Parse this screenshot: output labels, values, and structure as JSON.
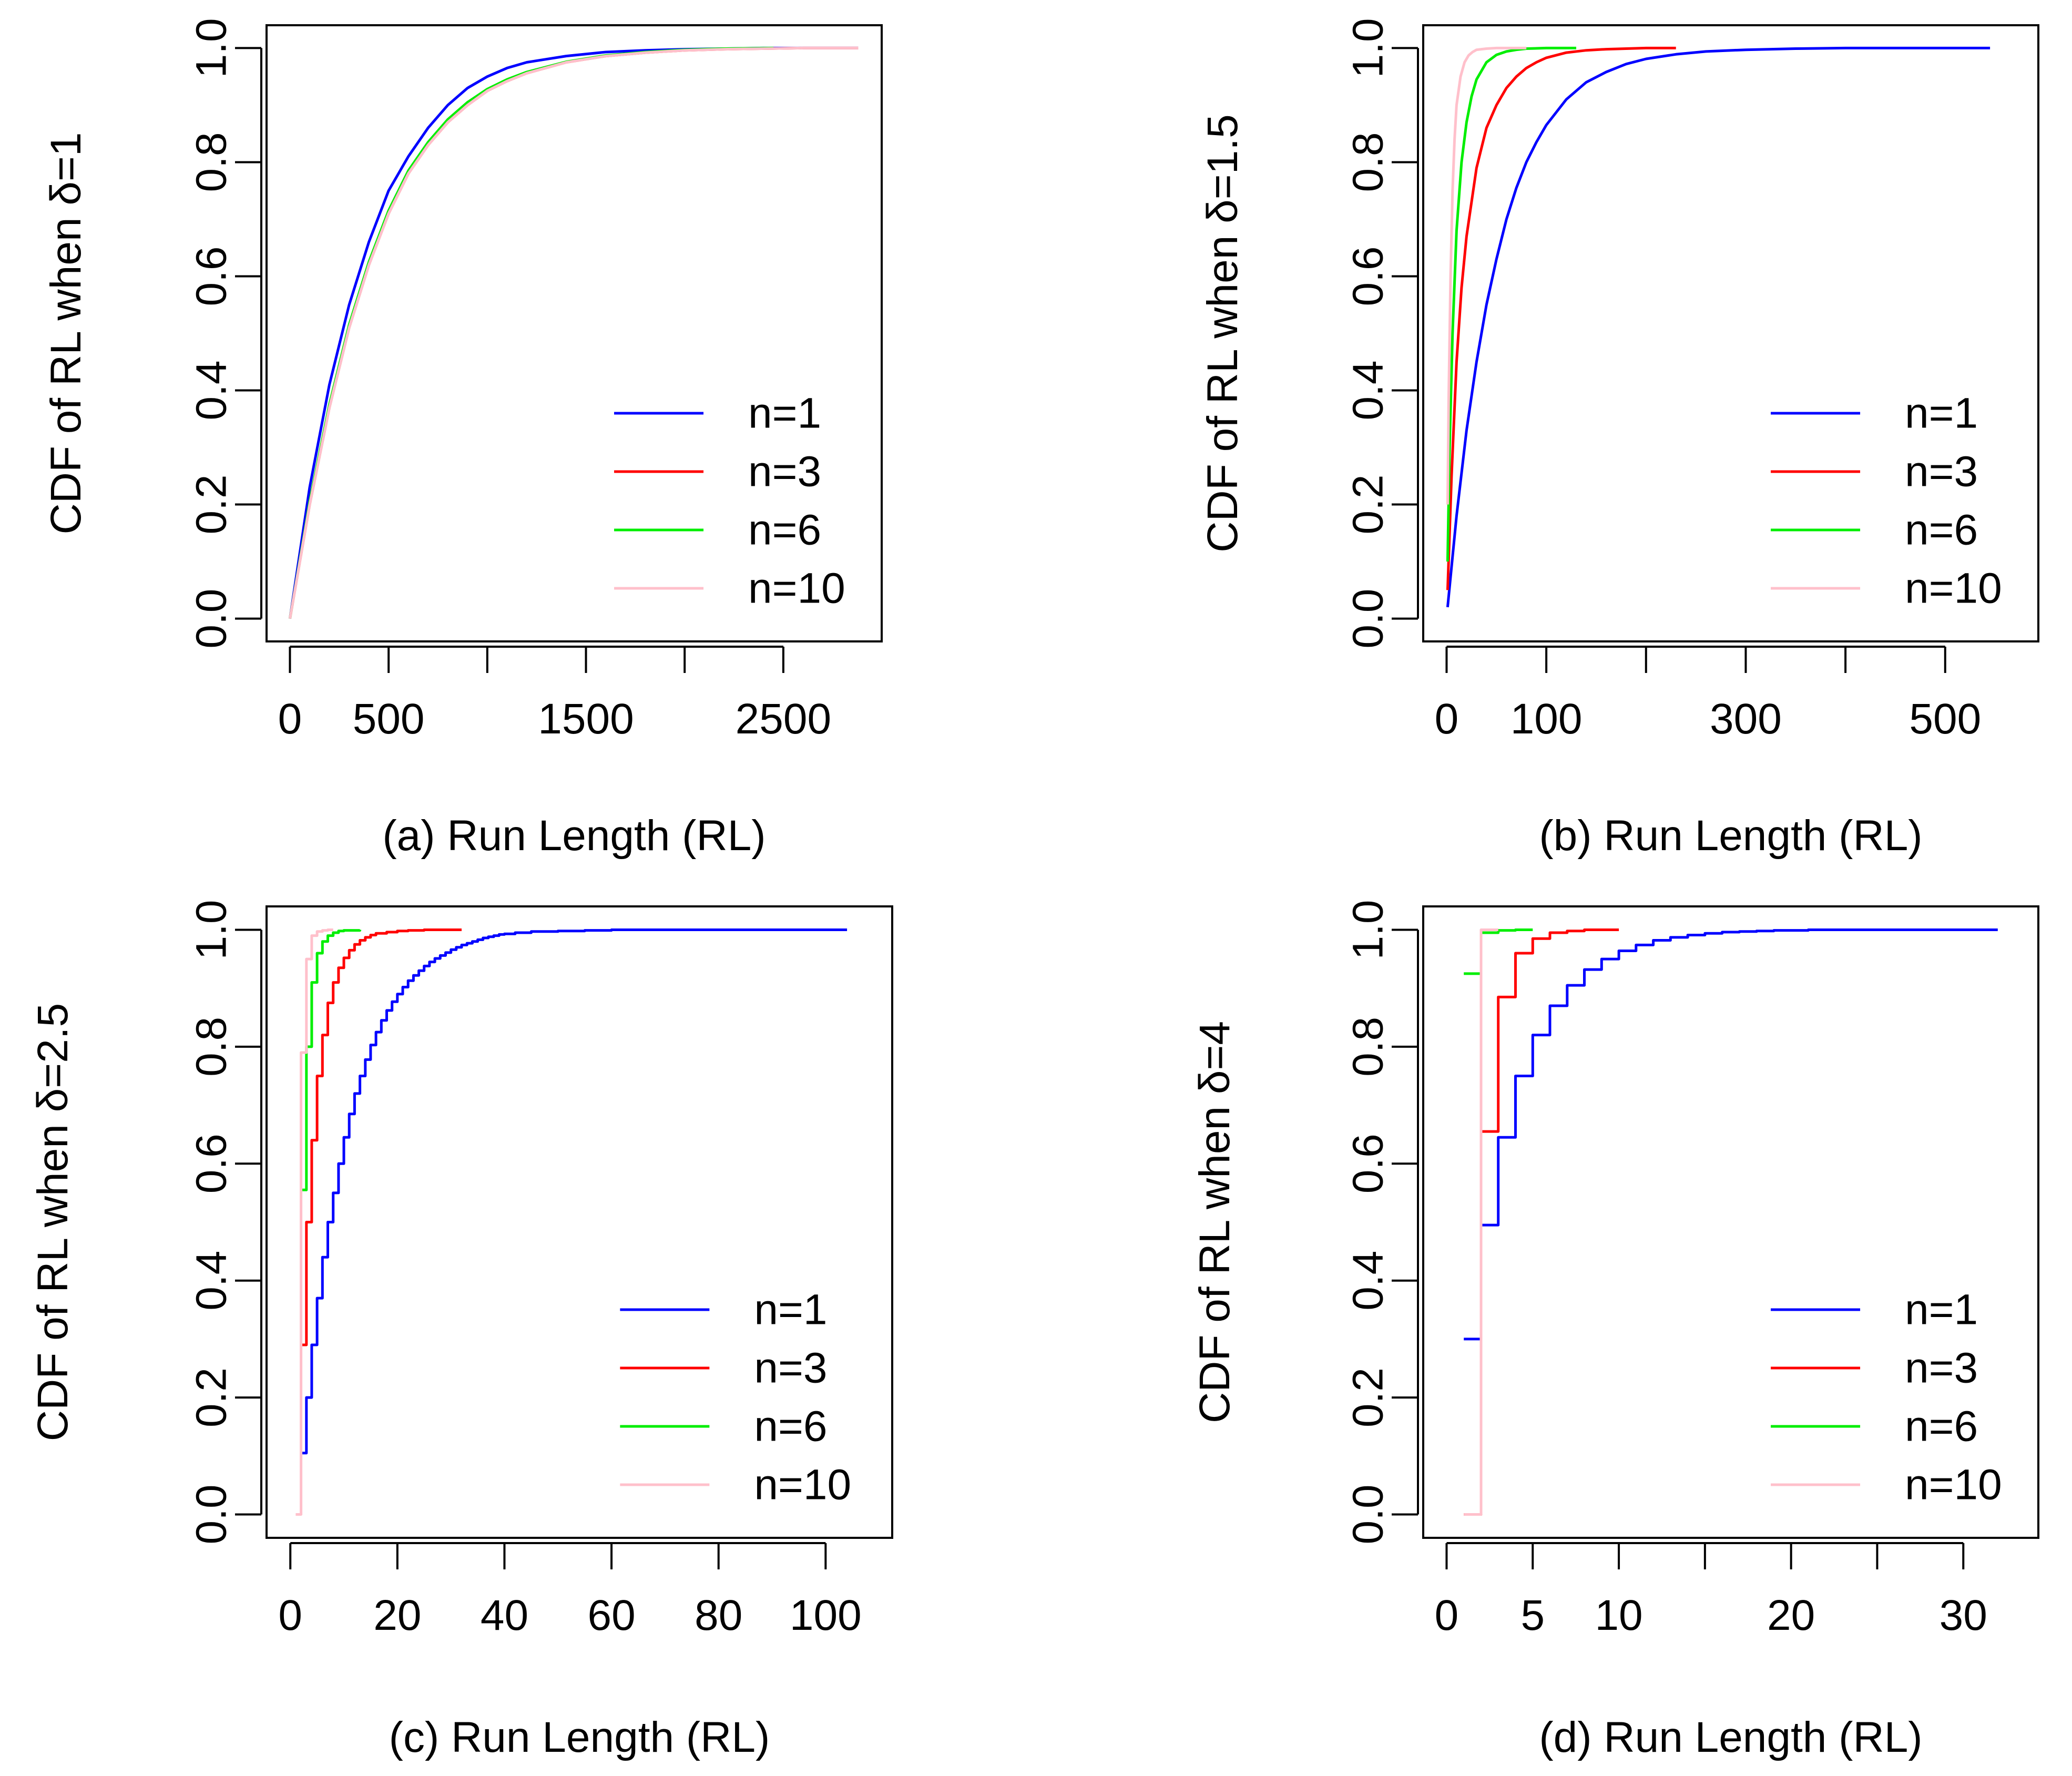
{
  "figure": {
    "panels": [
      "a",
      "b",
      "c",
      "d"
    ]
  },
  "chart_data": [
    {
      "id": "a",
      "type": "line",
      "step": false,
      "xlabel": "(a) Run Length (RL)",
      "ylabel_prefix": "CDF of RL when",
      "ylabel_symbol": "δ",
      "ylabel_suffix": "=1",
      "xlim": [
        0,
        2880
      ],
      "ylim": [
        0,
        1
      ],
      "xticks": [
        0,
        500,
        1000,
        1500,
        2000,
        2500
      ],
      "xtick_labels": [
        "0",
        "500",
        "",
        "1500",
        "",
        "2500"
      ],
      "yticks": [
        0.0,
        0.2,
        0.4,
        0.6,
        0.8,
        1.0
      ],
      "ytick_labels": [
        "0.0",
        "0.2",
        "0.4",
        "0.6",
        "0.8",
        "1.0"
      ],
      "legend_position": "bottom-right",
      "series": [
        {
          "name": "n=1",
          "color": "#0000ff",
          "x": [
            0,
            100,
            200,
            300,
            400,
            500,
            600,
            700,
            800,
            900,
            1000,
            1100,
            1200,
            1400,
            1600,
            1800,
            2000,
            2400,
            2880
          ],
          "y": [
            0.0,
            0.23,
            0.41,
            0.55,
            0.66,
            0.75,
            0.81,
            0.86,
            0.9,
            0.93,
            0.95,
            0.965,
            0.975,
            0.986,
            0.993,
            0.996,
            0.998,
            1.0,
            1.0
          ]
        },
        {
          "name": "n=3",
          "color": "#ff0000",
          "x": [
            0,
            100,
            200,
            300,
            400,
            500,
            600,
            700,
            800,
            900,
            1000,
            1100,
            1200,
            1400,
            1600,
            1800,
            2000,
            2200,
            2600,
            2880
          ],
          "y": [
            0.0,
            0.2,
            0.37,
            0.51,
            0.62,
            0.71,
            0.78,
            0.83,
            0.87,
            0.9,
            0.925,
            0.942,
            0.956,
            0.975,
            0.986,
            0.992,
            0.996,
            0.998,
            1.0,
            1.0
          ]
        },
        {
          "name": "n=6",
          "color": "#00ee00",
          "x": [
            0,
            100,
            200,
            300,
            400,
            500,
            600,
            700,
            800,
            900,
            1000,
            1100,
            1200,
            1400,
            1600,
            1800,
            2000,
            2200,
            2450
          ],
          "y": [
            0.0,
            0.205,
            0.375,
            0.515,
            0.625,
            0.715,
            0.785,
            0.835,
            0.875,
            0.905,
            0.928,
            0.945,
            0.958,
            0.976,
            0.987,
            0.993,
            0.997,
            0.999,
            1.0
          ]
        },
        {
          "name": "n=10",
          "color": "#ffc0cb",
          "x": [
            0,
            100,
            200,
            300,
            400,
            500,
            600,
            700,
            800,
            900,
            1000,
            1100,
            1200,
            1400,
            1600,
            1800,
            2000,
            2200,
            2600,
            2880
          ],
          "y": [
            0.0,
            0.2,
            0.37,
            0.51,
            0.62,
            0.71,
            0.78,
            0.83,
            0.87,
            0.9,
            0.925,
            0.942,
            0.956,
            0.975,
            0.986,
            0.992,
            0.996,
            0.998,
            1.0,
            1.0
          ]
        }
      ]
    },
    {
      "id": "b",
      "type": "line",
      "step": false,
      "xlabel": "(b) Run Length (RL)",
      "ylabel_prefix": "CDF of RL when",
      "ylabel_symbol": "δ",
      "ylabel_suffix": "=1.5",
      "xlim": [
        0,
        570
      ],
      "ylim": [
        0,
        1
      ],
      "xticks": [
        0,
        100,
        200,
        300,
        400,
        500
      ],
      "xtick_labels": [
        "0",
        "100",
        "",
        "300",
        "",
        "500"
      ],
      "yticks": [
        0.0,
        0.2,
        0.4,
        0.6,
        0.8,
        1.0
      ],
      "ytick_labels": [
        "0.0",
        "0.2",
        "0.4",
        "0.6",
        "0.8",
        "1.0"
      ],
      "legend_position": "bottom-right",
      "series": [
        {
          "name": "n=1",
          "color": "#0000ff",
          "x": [
            1,
            10,
            20,
            30,
            40,
            50,
            60,
            70,
            80,
            90,
            100,
            120,
            140,
            160,
            180,
            200,
            230,
            260,
            300,
            350,
            400,
            450,
            500,
            545
          ],
          "y": [
            0.02,
            0.18,
            0.33,
            0.45,
            0.55,
            0.63,
            0.7,
            0.755,
            0.8,
            0.835,
            0.865,
            0.91,
            0.94,
            0.958,
            0.972,
            0.981,
            0.989,
            0.994,
            0.997,
            0.999,
            1.0,
            1.0,
            1.0,
            1.0
          ]
        },
        {
          "name": "n=3",
          "color": "#ff0000",
          "x": [
            1,
            5,
            10,
            15,
            20,
            30,
            40,
            50,
            60,
            70,
            80,
            90,
            100,
            120,
            140,
            160,
            180,
            200,
            230
          ],
          "y": [
            0.05,
            0.25,
            0.45,
            0.58,
            0.67,
            0.79,
            0.86,
            0.9,
            0.93,
            0.95,
            0.965,
            0.975,
            0.983,
            0.992,
            0.996,
            0.998,
            0.999,
            1.0,
            1.0
          ]
        },
        {
          "name": "n=6",
          "color": "#00ee00",
          "x": [
            1,
            3,
            6,
            10,
            15,
            20,
            25,
            30,
            40,
            50,
            60,
            70,
            80,
            100,
            130
          ],
          "y": [
            0.1,
            0.3,
            0.5,
            0.68,
            0.8,
            0.87,
            0.915,
            0.945,
            0.975,
            0.988,
            0.994,
            0.997,
            0.999,
            1.0,
            1.0
          ]
        },
        {
          "name": "n=10",
          "color": "#ffc0cb",
          "x": [
            1,
            2,
            4,
            6,
            8,
            10,
            14,
            18,
            22,
            26,
            30,
            40,
            50,
            60,
            80
          ],
          "y": [
            0.2,
            0.38,
            0.6,
            0.75,
            0.84,
            0.9,
            0.95,
            0.975,
            0.987,
            0.993,
            0.997,
            0.999,
            1.0,
            1.0,
            1.0
          ]
        }
      ]
    },
    {
      "id": "c",
      "type": "line",
      "step": true,
      "xlabel": "(c) Run Length (RL)",
      "ylabel_prefix": "CDF of RL when",
      "ylabel_symbol": "δ",
      "ylabel_suffix": "=2.5",
      "xlim": [
        0,
        108
      ],
      "ylim": [
        0,
        1
      ],
      "xticks": [
        0,
        20,
        40,
        60,
        80,
        100
      ],
      "xtick_labels": [
        "0",
        "20",
        "40",
        "60",
        "80",
        "100"
      ],
      "yticks": [
        0.0,
        0.2,
        0.4,
        0.6,
        0.8,
        1.0
      ],
      "ytick_labels": [
        "0.0",
        "0.2",
        "0.4",
        "0.6",
        "0.8",
        "1.0"
      ],
      "legend_position": "bottom-right",
      "series": [
        {
          "name": "n=1",
          "color": "#0000ff",
          "x": [
            2,
            3,
            4,
            5,
            6,
            7,
            8,
            9,
            10,
            11,
            12,
            13,
            14,
            15,
            16,
            17,
            18,
            19,
            20,
            21,
            22,
            23,
            24,
            25,
            26,
            27,
            28,
            29,
            30,
            31,
            32,
            33,
            34,
            35,
            36,
            37,
            38,
            39,
            40,
            42,
            45,
            50,
            55,
            60,
            70,
            80,
            90,
            104
          ],
          "y": [
            0.105,
            0.2,
            0.29,
            0.37,
            0.44,
            0.5,
            0.55,
            0.6,
            0.645,
            0.685,
            0.72,
            0.75,
            0.778,
            0.803,
            0.825,
            0.845,
            0.862,
            0.877,
            0.89,
            0.902,
            0.913,
            0.922,
            0.93,
            0.938,
            0.945,
            0.951,
            0.956,
            0.961,
            0.966,
            0.97,
            0.974,
            0.977,
            0.98,
            0.983,
            0.986,
            0.988,
            0.99,
            0.992,
            0.993,
            0.995,
            0.997,
            0.998,
            0.999,
            1.0,
            1.0,
            1.0,
            1.0,
            1.0
          ]
        },
        {
          "name": "n=3",
          "color": "#ff0000",
          "x": [
            2,
            3,
            4,
            5,
            6,
            7,
            8,
            9,
            10,
            11,
            12,
            13,
            14,
            15,
            16,
            18,
            20,
            22,
            25,
            28,
            32
          ],
          "y": [
            0.29,
            0.5,
            0.64,
            0.75,
            0.82,
            0.875,
            0.91,
            0.935,
            0.952,
            0.965,
            0.975,
            0.982,
            0.987,
            0.991,
            0.994,
            0.996,
            0.998,
            0.999,
            1.0,
            1.0,
            1.0
          ]
        },
        {
          "name": "n=6",
          "color": "#00ee00",
          "x": [
            2,
            3,
            4,
            5,
            6,
            7,
            8,
            9,
            10,
            13
          ],
          "y": [
            0.555,
            0.8,
            0.91,
            0.96,
            0.98,
            0.99,
            0.995,
            0.998,
            0.999,
            1.0
          ]
        },
        {
          "name": "n=10",
          "color": "#ffc0cb",
          "x": [
            1,
            2,
            3,
            4,
            5,
            6,
            7,
            8
          ],
          "y": [
            0.0,
            0.79,
            0.95,
            0.99,
            0.997,
            0.999,
            1.0,
            1.0
          ]
        }
      ]
    },
    {
      "id": "d",
      "type": "line",
      "step": true,
      "xlabel": "(d) Run Length (RL)",
      "ylabel_prefix": "CDF of RL when",
      "ylabel_symbol": "δ",
      "ylabel_suffix": "=4",
      "xlim": [
        0,
        33
      ],
      "ylim": [
        0,
        1
      ],
      "xticks": [
        0,
        5,
        10,
        15,
        20,
        25,
        30
      ],
      "xtick_labels": [
        "0",
        "5",
        "10",
        "",
        "20",
        "",
        "30"
      ],
      "yticks": [
        0.0,
        0.2,
        0.4,
        0.6,
        0.8,
        1.0
      ],
      "ytick_labels": [
        "0.0",
        "0.2",
        "0.4",
        "0.6",
        "0.8",
        "1.0"
      ],
      "legend_position": "bottom-right",
      "series": [
        {
          "name": "n=1",
          "color": "#0000ff",
          "x": [
            1,
            2,
            3,
            4,
            5,
            6,
            7,
            8,
            9,
            10,
            11,
            12,
            13,
            14,
            15,
            16,
            17,
            18,
            19,
            20,
            21,
            22,
            25,
            28,
            32
          ],
          "y": [
            0.3,
            0.495,
            0.645,
            0.75,
            0.82,
            0.87,
            0.905,
            0.932,
            0.95,
            0.964,
            0.974,
            0.982,
            0.987,
            0.991,
            0.994,
            0.996,
            0.997,
            0.998,
            0.999,
            0.999,
            1.0,
            1.0,
            1.0,
            1.0,
            1.0
          ]
        },
        {
          "name": "n=3",
          "color": "#ff0000",
          "x": [
            1,
            2,
            3,
            4,
            5,
            6,
            7,
            8,
            10
          ],
          "y": [
            0.0,
            0.655,
            0.885,
            0.96,
            0.985,
            0.995,
            0.998,
            1.0,
            1.0
          ]
        },
        {
          "name": "n=6",
          "color": "#00ee00",
          "x": [
            1,
            2,
            3,
            4,
            5
          ],
          "y": [
            0.925,
            0.995,
            0.999,
            1.0,
            1.0
          ]
        },
        {
          "name": "n=10",
          "color": "#ffc0cb",
          "x": [
            1,
            2,
            3
          ],
          "y": [
            0.0,
            1.0,
            1.0
          ]
        }
      ]
    }
  ]
}
